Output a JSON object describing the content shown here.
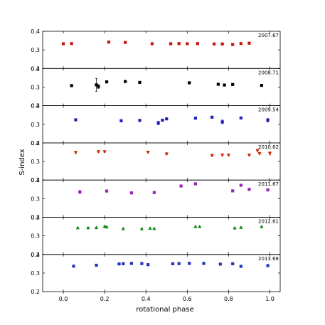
{
  "chart_data": {
    "type": "scatter",
    "title": "",
    "xlabel": "rotational phase",
    "ylabel": "S-index",
    "xlim": [
      -0.1,
      1.05
    ],
    "ylim": [
      0.2,
      0.4
    ],
    "x_ticks": [
      "0.0",
      "0.2",
      "0.4",
      "0.6",
      "0.8",
      "1.0"
    ],
    "y_ticks": [
      "0.2",
      "0.3",
      "0.4"
    ],
    "panels": [
      {
        "label": "2007.67",
        "color": "#cc1111",
        "marker": "square",
        "points": [
          {
            "x": 0.0,
            "y": 0.333,
            "e": 0.002
          },
          {
            "x": 0.04,
            "y": 0.334,
            "e": 0.004
          },
          {
            "x": 0.22,
            "y": 0.342,
            "e": 0.003
          },
          {
            "x": 0.3,
            "y": 0.34,
            "e": 0.004
          },
          {
            "x": 0.43,
            "y": 0.333,
            "e": 0.003
          },
          {
            "x": 0.52,
            "y": 0.333,
            "e": 0.002
          },
          {
            "x": 0.56,
            "y": 0.334,
            "e": 0.002
          },
          {
            "x": 0.6,
            "y": 0.333,
            "e": 0.003
          },
          {
            "x": 0.65,
            "y": 0.334,
            "e": 0.002
          },
          {
            "x": 0.73,
            "y": 0.332,
            "e": 0.003
          },
          {
            "x": 0.77,
            "y": 0.332,
            "e": 0.002
          },
          {
            "x": 0.82,
            "y": 0.329,
            "e": 0.005
          },
          {
            "x": 0.86,
            "y": 0.334,
            "e": 0.002
          },
          {
            "x": 0.9,
            "y": 0.336,
            "e": 0.003
          }
        ]
      },
      {
        "label": "2008.71",
        "color": "#000000",
        "marker": "square",
        "points": [
          {
            "x": 0.04,
            "y": 0.308,
            "e": 0.002
          },
          {
            "x": 0.16,
            "y": 0.312,
            "e": 0.035
          },
          {
            "x": 0.17,
            "y": 0.303,
            "e": 0.01
          },
          {
            "x": 0.21,
            "y": 0.328,
            "e": 0.003
          },
          {
            "x": 0.3,
            "y": 0.33,
            "e": 0.006
          },
          {
            "x": 0.37,
            "y": 0.325,
            "e": 0.006
          },
          {
            "x": 0.61,
            "y": 0.323,
            "e": 0.002
          },
          {
            "x": 0.75,
            "y": 0.315,
            "e": 0.003
          },
          {
            "x": 0.78,
            "y": 0.311,
            "e": 0.002
          },
          {
            "x": 0.82,
            "y": 0.314,
            "e": 0.002
          },
          {
            "x": 0.96,
            "y": 0.309,
            "e": 0.003
          }
        ]
      },
      {
        "label": "2009.54",
        "color": "#2222bb",
        "marker": "square",
        "points": [
          {
            "x": 0.06,
            "y": 0.324,
            "e": 0.004
          },
          {
            "x": 0.28,
            "y": 0.319,
            "e": 0.004
          },
          {
            "x": 0.37,
            "y": 0.321,
            "e": 0.004
          },
          {
            "x": 0.46,
            "y": 0.307,
            "e": 0.01
          },
          {
            "x": 0.48,
            "y": 0.322,
            "e": 0.004
          },
          {
            "x": 0.5,
            "y": 0.329,
            "e": 0.003
          },
          {
            "x": 0.64,
            "y": 0.333,
            "e": 0.004
          },
          {
            "x": 0.72,
            "y": 0.338,
            "e": 0.004
          },
          {
            "x": 0.77,
            "y": 0.313,
            "e": 0.01
          },
          {
            "x": 0.86,
            "y": 0.334,
            "e": 0.004
          },
          {
            "x": 0.99,
            "y": 0.322,
            "e": 0.01
          }
        ]
      },
      {
        "label": "2010.62",
        "color": "#cc2200",
        "marker": "triangle-down",
        "points": [
          {
            "x": 0.06,
            "y": 0.348,
            "e": 0.006
          },
          {
            "x": 0.17,
            "y": 0.352,
            "e": 0.003
          },
          {
            "x": 0.2,
            "y": 0.352,
            "e": 0.003
          },
          {
            "x": 0.41,
            "y": 0.349,
            "e": 0.003
          },
          {
            "x": 0.5,
            "y": 0.34,
            "e": 0.004
          },
          {
            "x": 0.72,
            "y": 0.332,
            "e": 0.006
          },
          {
            "x": 0.77,
            "y": 0.334,
            "e": 0.004
          },
          {
            "x": 0.8,
            "y": 0.334,
            "e": 0.003
          },
          {
            "x": 0.9,
            "y": 0.334,
            "e": 0.003
          },
          {
            "x": 0.94,
            "y": 0.358,
            "e": 0.003
          },
          {
            "x": 0.95,
            "y": 0.342,
            "e": 0.004
          },
          {
            "x": 1.0,
            "y": 0.343,
            "e": 0.008
          }
        ]
      },
      {
        "label": "2011.67",
        "color": "#9922bb",
        "marker": "square",
        "points": [
          {
            "x": 0.08,
            "y": 0.336,
            "e": 0.008
          },
          {
            "x": 0.21,
            "y": 0.341,
            "e": 0.003
          },
          {
            "x": 0.33,
            "y": 0.331,
            "e": 0.004
          },
          {
            "x": 0.44,
            "y": 0.333,
            "e": 0.004
          },
          {
            "x": 0.57,
            "y": 0.368,
            "e": 0.003
          },
          {
            "x": 0.64,
            "y": 0.38,
            "e": 0.004
          },
          {
            "x": 0.82,
            "y": 0.342,
            "e": 0.004
          },
          {
            "x": 0.86,
            "y": 0.372,
            "e": 0.003
          },
          {
            "x": 0.9,
            "y": 0.35,
            "e": 0.003
          },
          {
            "x": 0.99,
            "y": 0.347,
            "e": 0.003
          }
        ]
      },
      {
        "label": "2012.61",
        "color": "#118811",
        "marker": "triangle-up",
        "points": [
          {
            "x": 0.07,
            "y": 0.344,
            "e": 0.002
          },
          {
            "x": 0.12,
            "y": 0.344,
            "e": 0.002
          },
          {
            "x": 0.16,
            "y": 0.345,
            "e": 0.002
          },
          {
            "x": 0.2,
            "y": 0.351,
            "e": 0.004
          },
          {
            "x": 0.21,
            "y": 0.348,
            "e": 0.003
          },
          {
            "x": 0.29,
            "y": 0.339,
            "e": 0.003
          },
          {
            "x": 0.38,
            "y": 0.339,
            "e": 0.002
          },
          {
            "x": 0.42,
            "y": 0.341,
            "e": 0.004
          },
          {
            "x": 0.44,
            "y": 0.34,
            "e": 0.002
          },
          {
            "x": 0.64,
            "y": 0.35,
            "e": 0.003
          },
          {
            "x": 0.66,
            "y": 0.35,
            "e": 0.002
          },
          {
            "x": 0.83,
            "y": 0.343,
            "e": 0.002
          },
          {
            "x": 0.86,
            "y": 0.346,
            "e": 0.002
          },
          {
            "x": 0.96,
            "y": 0.35,
            "e": 0.002
          }
        ]
      },
      {
        "label": "2013.68",
        "color": "#2233bb",
        "marker": "square",
        "points": [
          {
            "x": 0.05,
            "y": 0.337,
            "e": 0.004
          },
          {
            "x": 0.16,
            "y": 0.342,
            "e": 0.004
          },
          {
            "x": 0.27,
            "y": 0.349,
            "e": 0.003
          },
          {
            "x": 0.29,
            "y": 0.35,
            "e": 0.003
          },
          {
            "x": 0.33,
            "y": 0.352,
            "e": 0.003
          },
          {
            "x": 0.38,
            "y": 0.351,
            "e": 0.003
          },
          {
            "x": 0.41,
            "y": 0.345,
            "e": 0.003
          },
          {
            "x": 0.53,
            "y": 0.35,
            "e": 0.004
          },
          {
            "x": 0.56,
            "y": 0.351,
            "e": 0.003
          },
          {
            "x": 0.61,
            "y": 0.352,
            "e": 0.003
          },
          {
            "x": 0.68,
            "y": 0.352,
            "e": 0.003
          },
          {
            "x": 0.76,
            "y": 0.348,
            "e": 0.003
          },
          {
            "x": 0.82,
            "y": 0.35,
            "e": 0.003
          },
          {
            "x": 0.86,
            "y": 0.336,
            "e": 0.004
          },
          {
            "x": 0.99,
            "y": 0.34,
            "e": 0.004
          }
        ]
      }
    ]
  }
}
